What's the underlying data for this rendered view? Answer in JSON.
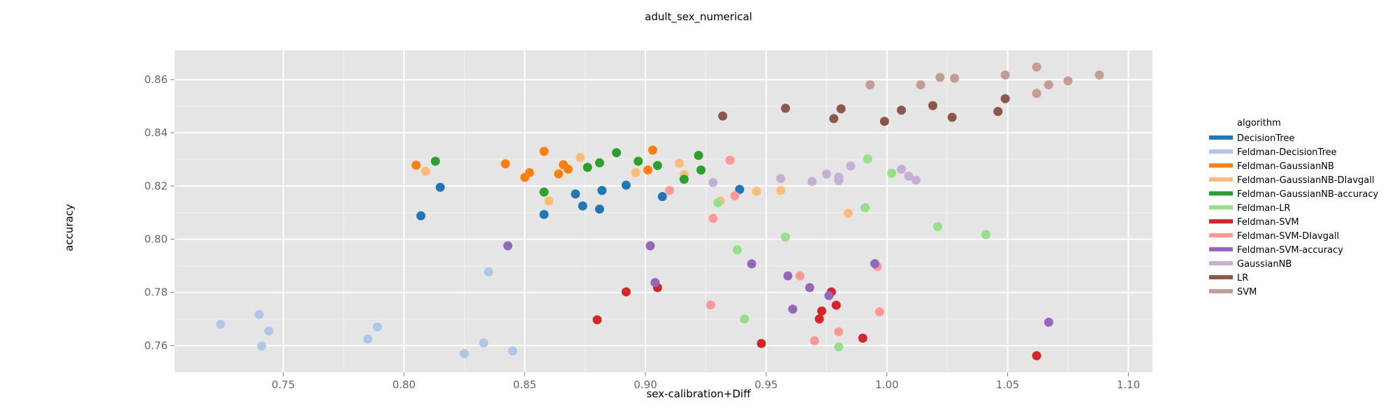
{
  "chart_data": {
    "type": "scatter",
    "title": "adult_sex_numerical",
    "xlabel": "sex-calibration+Diff",
    "ylabel": "accuracy",
    "xlim": [
      0.705,
      1.11
    ],
    "ylim": [
      0.75,
      0.871
    ],
    "x_ticks": [
      0.75,
      0.8,
      0.85,
      0.9,
      0.95,
      1.0,
      1.05,
      1.1
    ],
    "x_tick_labels": [
      "0.75",
      "0.80",
      "0.85",
      "0.90",
      "0.95",
      "1.00",
      "1.05",
      "1.10"
    ],
    "y_ticks": [
      0.76,
      0.78,
      0.8,
      0.82,
      0.84,
      0.86
    ],
    "y_tick_labels": [
      "0.76",
      "0.78",
      "0.80",
      "0.82",
      "0.84",
      "0.86"
    ],
    "grid": true,
    "legend_title": "algorithm",
    "legend_position": "right",
    "series": [
      {
        "name": "DecisionTree",
        "color": "#1f77b4",
        "points": [
          [
            0.807,
            0.8088
          ],
          [
            0.815,
            0.8195
          ],
          [
            0.858,
            0.8093
          ],
          [
            0.871,
            0.817
          ],
          [
            0.874,
            0.8125
          ],
          [
            0.881,
            0.8113
          ],
          [
            0.882,
            0.8183
          ],
          [
            0.892,
            0.8203
          ],
          [
            0.907,
            0.816
          ],
          [
            0.939,
            0.8187
          ]
        ]
      },
      {
        "name": "Feldman-DecisionTree",
        "color": "#aec7e8",
        "points": [
          [
            0.724,
            0.768
          ],
          [
            0.74,
            0.7717
          ],
          [
            0.741,
            0.7598
          ],
          [
            0.744,
            0.7655
          ],
          [
            0.785,
            0.7625
          ],
          [
            0.789,
            0.767
          ],
          [
            0.825,
            0.757
          ],
          [
            0.833,
            0.761
          ],
          [
            0.835,
            0.7877
          ],
          [
            0.845,
            0.758
          ]
        ]
      },
      {
        "name": "Feldman-GaussianNB",
        "color": "#ff7f0e",
        "points": [
          [
            0.805,
            0.8278
          ],
          [
            0.842,
            0.8283
          ],
          [
            0.85,
            0.8232
          ],
          [
            0.852,
            0.825
          ],
          [
            0.858,
            0.833
          ],
          [
            0.864,
            0.8245
          ],
          [
            0.866,
            0.828
          ],
          [
            0.868,
            0.8263
          ],
          [
            0.901,
            0.826
          ],
          [
            0.903,
            0.8335
          ]
        ]
      },
      {
        "name": "Feldman-GaussianNB-DIavgall",
        "color": "#ffbb78",
        "points": [
          [
            0.809,
            0.8255
          ],
          [
            0.86,
            0.8143
          ],
          [
            0.873,
            0.8307
          ],
          [
            0.896,
            0.825
          ],
          [
            0.914,
            0.8285
          ],
          [
            0.916,
            0.8243
          ],
          [
            0.931,
            0.8143
          ],
          [
            0.946,
            0.818
          ],
          [
            0.956,
            0.8183
          ],
          [
            0.984,
            0.8097
          ]
        ]
      },
      {
        "name": "Feldman-GaussianNB-accuracy",
        "color": "#2ca02c",
        "points": [
          [
            0.813,
            0.8293
          ],
          [
            0.858,
            0.8177
          ],
          [
            0.876,
            0.827
          ],
          [
            0.881,
            0.8287
          ],
          [
            0.888,
            0.8325
          ],
          [
            0.897,
            0.8293
          ],
          [
            0.905,
            0.8277
          ],
          [
            0.916,
            0.8225
          ],
          [
            0.922,
            0.8315
          ],
          [
            0.923,
            0.826
          ]
        ]
      },
      {
        "name": "Feldman-LR",
        "color": "#98df8a",
        "points": [
          [
            0.93,
            0.8137
          ],
          [
            0.938,
            0.796
          ],
          [
            0.941,
            0.77
          ],
          [
            0.958,
            0.8008
          ],
          [
            0.98,
            0.7595
          ],
          [
            0.991,
            0.8118
          ],
          [
            0.992,
            0.8302
          ],
          [
            1.002,
            0.8248
          ],
          [
            1.021,
            0.8047
          ],
          [
            1.041,
            0.8017
          ]
        ]
      },
      {
        "name": "Feldman-SVM",
        "color": "#d62728",
        "points": [
          [
            0.88,
            0.7697
          ],
          [
            0.892,
            0.7802
          ],
          [
            0.905,
            0.7818
          ],
          [
            0.948,
            0.7608
          ],
          [
            0.972,
            0.77
          ],
          [
            0.973,
            0.773
          ],
          [
            0.977,
            0.7802
          ],
          [
            0.979,
            0.7752
          ],
          [
            0.99,
            0.7628
          ],
          [
            1.062,
            0.7562
          ]
        ]
      },
      {
        "name": "Feldman-SVM-DIavgall",
        "color": "#ff9896",
        "points": [
          [
            0.91,
            0.8183
          ],
          [
            0.927,
            0.7753
          ],
          [
            0.928,
            0.8078
          ],
          [
            0.935,
            0.8297
          ],
          [
            0.937,
            0.8163
          ],
          [
            0.964,
            0.7862
          ],
          [
            0.97,
            0.7618
          ],
          [
            0.98,
            0.7652
          ],
          [
            0.996,
            0.7897
          ],
          [
            0.997,
            0.7727
          ]
        ]
      },
      {
        "name": "Feldman-SVM-accuracy",
        "color": "#9467bd",
        "points": [
          [
            0.843,
            0.7975
          ],
          [
            0.902,
            0.7975
          ],
          [
            0.904,
            0.7837
          ],
          [
            0.944,
            0.7907
          ],
          [
            0.959,
            0.7862
          ],
          [
            0.961,
            0.7737
          ],
          [
            0.968,
            0.7818
          ],
          [
            0.976,
            0.7788
          ],
          [
            0.995,
            0.7908
          ],
          [
            1.067,
            0.7688
          ]
        ]
      },
      {
        "name": "GaussianNB",
        "color": "#c5b0d5",
        "points": [
          [
            0.928,
            0.8213
          ],
          [
            0.956,
            0.8228
          ],
          [
            0.969,
            0.8217
          ],
          [
            0.975,
            0.8245
          ],
          [
            0.98,
            0.8233
          ],
          [
            0.98,
            0.822
          ],
          [
            0.985,
            0.8275
          ],
          [
            1.006,
            0.8263
          ],
          [
            1.009,
            0.8237
          ],
          [
            1.012,
            0.8222
          ]
        ]
      },
      {
        "name": "LR",
        "color": "#8c564b",
        "points": [
          [
            0.932,
            0.8463
          ],
          [
            0.958,
            0.8492
          ],
          [
            0.978,
            0.8453
          ],
          [
            0.981,
            0.849
          ],
          [
            0.999,
            0.8443
          ],
          [
            1.006,
            0.8485
          ],
          [
            1.019,
            0.8502
          ],
          [
            1.027,
            0.8458
          ],
          [
            1.046,
            0.848
          ],
          [
            1.049,
            0.8528
          ]
        ]
      },
      {
        "name": "SVM",
        "color": "#c49c94",
        "points": [
          [
            0.993,
            0.858
          ],
          [
            1.014,
            0.858
          ],
          [
            1.022,
            0.8608
          ],
          [
            1.028,
            0.8605
          ],
          [
            1.049,
            0.8617
          ],
          [
            1.062,
            0.8647
          ],
          [
            1.062,
            0.8548
          ],
          [
            1.067,
            0.858
          ],
          [
            1.075,
            0.8595
          ],
          [
            1.088,
            0.8617
          ]
        ]
      }
    ]
  }
}
